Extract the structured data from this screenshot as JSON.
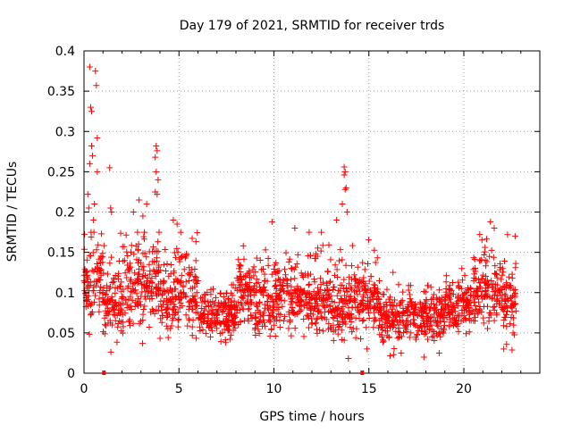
{
  "chart_data": {
    "type": "scatter",
    "title": "Day 179 of 2021, SRMTID for receiver trds",
    "xlabel": "GPS time / hours",
    "ylabel": "SRMTID / TECUs",
    "xlim": [
      0,
      24
    ],
    "ylim": [
      0,
      0.4
    ],
    "xticks": [
      0,
      5,
      10,
      15,
      20
    ],
    "xtick_labels": [
      "0",
      "5",
      "10",
      "15",
      "20"
    ],
    "yticks": [
      0,
      0.05,
      0.1,
      0.15,
      0.2,
      0.25,
      0.3,
      0.35,
      0.4
    ],
    "ytick_labels": [
      "0",
      "0.05",
      "0.1",
      "0.15",
      "0.2",
      "0.25",
      "0.3",
      "0.35",
      "0.4"
    ],
    "grid": true,
    "marker": "plus",
    "color": "#ff0000",
    "outliers": [
      {
        "x": 0.3,
        "y": 0.38
      },
      {
        "x": 0.6,
        "y": 0.375
      },
      {
        "x": 0.65,
        "y": 0.357
      },
      {
        "x": 0.35,
        "y": 0.33
      },
      {
        "x": 0.4,
        "y": 0.325
      },
      {
        "x": 0.7,
        "y": 0.292
      },
      {
        "x": 0.4,
        "y": 0.282
      },
      {
        "x": 0.45,
        "y": 0.27
      },
      {
        "x": 0.3,
        "y": 0.26
      },
      {
        "x": 0.7,
        "y": 0.25
      },
      {
        "x": 1.35,
        "y": 0.255
      },
      {
        "x": 0.2,
        "y": 0.222
      },
      {
        "x": 0.55,
        "y": 0.21
      },
      {
        "x": 0.25,
        "y": 0.205
      },
      {
        "x": 0.5,
        "y": 0.19
      },
      {
        "x": 3.8,
        "y": 0.282
      },
      {
        "x": 3.85,
        "y": 0.276
      },
      {
        "x": 3.75,
        "y": 0.268
      },
      {
        "x": 3.8,
        "y": 0.25
      },
      {
        "x": 3.9,
        "y": 0.24
      },
      {
        "x": 3.75,
        "y": 0.225
      },
      {
        "x": 3.85,
        "y": 0.222
      },
      {
        "x": 2.9,
        "y": 0.215
      },
      {
        "x": 3.3,
        "y": 0.21
      },
      {
        "x": 2.6,
        "y": 0.2
      },
      {
        "x": 3.1,
        "y": 0.195
      },
      {
        "x": 1.4,
        "y": 0.205
      },
      {
        "x": 1.45,
        "y": 0.2
      },
      {
        "x": 4.7,
        "y": 0.19
      },
      {
        "x": 4.9,
        "y": 0.185
      },
      {
        "x": 13.7,
        "y": 0.256
      },
      {
        "x": 13.75,
        "y": 0.25
      },
      {
        "x": 13.7,
        "y": 0.246
      },
      {
        "x": 13.8,
        "y": 0.23
      },
      {
        "x": 13.75,
        "y": 0.228
      },
      {
        "x": 13.6,
        "y": 0.21
      },
      {
        "x": 13.85,
        "y": 0.2
      },
      {
        "x": 13.3,
        "y": 0.19
      },
      {
        "x": 9.9,
        "y": 0.188
      },
      {
        "x": 21.4,
        "y": 0.188
      },
      {
        "x": 21.6,
        "y": 0.18
      },
      {
        "x": 22.7,
        "y": 0.17
      },
      {
        "x": 22.3,
        "y": 0.172
      },
      {
        "x": 11.1,
        "y": 0.18
      },
      {
        "x": 12.5,
        "y": 0.175
      },
      {
        "x": 16.7,
        "y": 0.025
      },
      {
        "x": 17.9,
        "y": 0.02
      },
      {
        "x": 16.3,
        "y": 0.023
      },
      {
        "x": 18.7,
        "y": 0.025
      },
      {
        "x": 14.9,
        "y": 0.03
      },
      {
        "x": 22.1,
        "y": 0.03
      }
    ],
    "dense_segments": [
      {
        "x_range": [
          0.0,
          1.0
        ],
        "y_center": 0.115,
        "y_spread": 0.05
      },
      {
        "x_range": [
          1.0,
          2.0
        ],
        "y_center": 0.085,
        "y_spread": 0.04
      },
      {
        "x_range": [
          2.0,
          4.0
        ],
        "y_center": 0.11,
        "y_spread": 0.045
      },
      {
        "x_range": [
          4.0,
          5.0
        ],
        "y_center": 0.09,
        "y_spread": 0.04
      },
      {
        "x_range": [
          5.0,
          6.0
        ],
        "y_center": 0.1,
        "y_spread": 0.045
      },
      {
        "x_range": [
          6.0,
          8.0
        ],
        "y_center": 0.07,
        "y_spread": 0.025
      },
      {
        "x_range": [
          8.0,
          9.0
        ],
        "y_center": 0.1,
        "y_spread": 0.035
      },
      {
        "x_range": [
          9.0,
          10.0
        ],
        "y_center": 0.085,
        "y_spread": 0.035
      },
      {
        "x_range": [
          10.0,
          12.0
        ],
        "y_center": 0.095,
        "y_spread": 0.035
      },
      {
        "x_range": [
          12.0,
          13.0
        ],
        "y_center": 0.09,
        "y_spread": 0.035
      },
      {
        "x_range": [
          13.0,
          14.5
        ],
        "y_center": 0.085,
        "y_spread": 0.04
      },
      {
        "x_range": [
          14.5,
          15.5
        ],
        "y_center": 0.09,
        "y_spread": 0.035
      },
      {
        "x_range": [
          15.5,
          17.0
        ],
        "y_center": 0.065,
        "y_spread": 0.025
      },
      {
        "x_range": [
          17.0,
          19.0
        ],
        "y_center": 0.07,
        "y_spread": 0.025
      },
      {
        "x_range": [
          19.0,
          20.5
        ],
        "y_center": 0.085,
        "y_spread": 0.03
      },
      {
        "x_range": [
          20.5,
          22.0
        ],
        "y_center": 0.1,
        "y_spread": 0.035
      },
      {
        "x_range": [
          22.0,
          22.8
        ],
        "y_center": 0.09,
        "y_spread": 0.04
      }
    ],
    "axis_markers": [
      {
        "x": 1.05,
        "y": 0
      },
      {
        "x": 14.65,
        "y": 0
      }
    ]
  }
}
